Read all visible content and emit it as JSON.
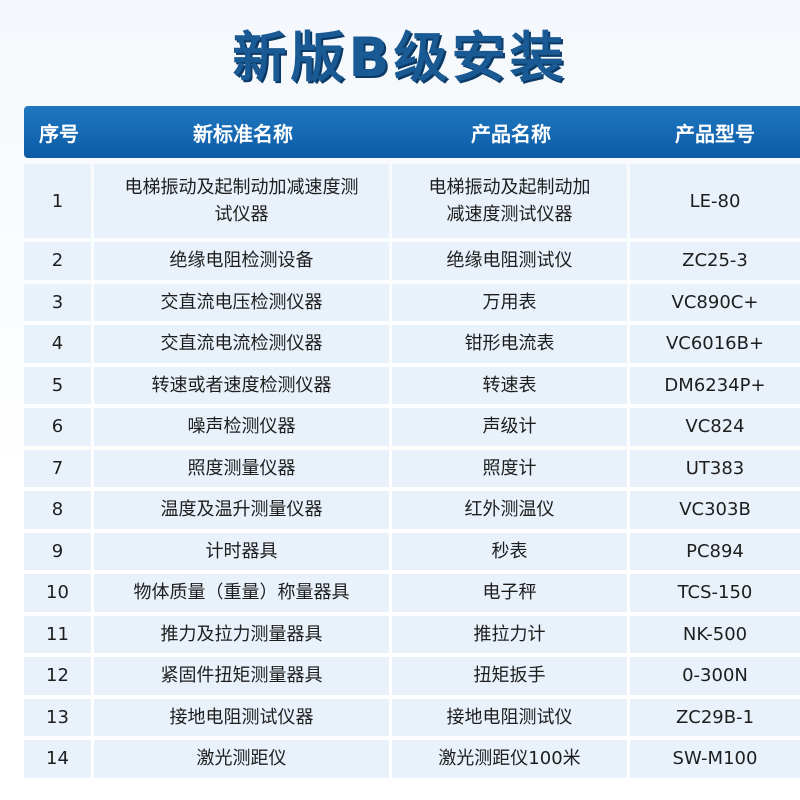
{
  "title": "新版B级安装",
  "columns": [
    "序号",
    "新标准名称",
    "产品名称",
    "产品型号"
  ],
  "rows": [
    {
      "no": "1",
      "standard": "电梯振动及起制动加减速度测试仪器",
      "product": "电梯振动及起制动加减速度测试仪器",
      "model": "LE-80"
    },
    {
      "no": "2",
      "standard": "绝缘电阻检测设备",
      "product": "绝缘电阻测试仪",
      "model": "ZC25-3"
    },
    {
      "no": "3",
      "standard": "交直流电压检测仪器",
      "product": "万用表",
      "model": "VC890C+"
    },
    {
      "no": "4",
      "standard": "交直流电流检测仪器",
      "product": "钳形电流表",
      "model": "VC6016B+"
    },
    {
      "no": "5",
      "standard": "转速或者速度检测仪器",
      "product": "转速表",
      "model": "DM6234P+"
    },
    {
      "no": "6",
      "standard": "噪声检测仪器",
      "product": "声级计",
      "model": "VC824"
    },
    {
      "no": "7",
      "standard": "照度测量仪器",
      "product": "照度计",
      "model": "UT383"
    },
    {
      "no": "8",
      "standard": "温度及温升测量仪器",
      "product": "红外测温仪",
      "model": "VC303B"
    },
    {
      "no": "9",
      "standard": "计时器具",
      "product": "秒表",
      "model": "PC894"
    },
    {
      "no": "10",
      "standard": "物体质量（重量）称量器具",
      "product": "电子秤",
      "model": "TCS-150"
    },
    {
      "no": "11",
      "standard": "推力及拉力测量器具",
      "product": "推拉力计",
      "model": "NK-500"
    },
    {
      "no": "12",
      "standard": "紧固件扭矩测量器具",
      "product": "扭矩扳手",
      "model": "0-300N"
    },
    {
      "no": "13",
      "standard": "接地电阻测试仪器",
      "product": "接地电阻测试仪",
      "model": "ZC29B-1"
    },
    {
      "no": "14",
      "standard": "激光测距仪",
      "product": "激光测距仪100米",
      "model": "SW-M100"
    }
  ]
}
